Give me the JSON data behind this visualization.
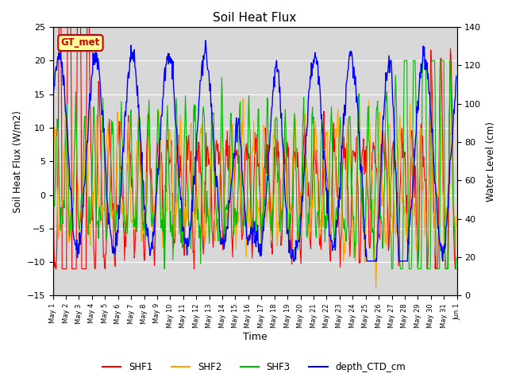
{
  "title": "Soil Heat Flux",
  "xlabel": "Time",
  "ylabel_left": "Soil Heat Flux (W/m2)",
  "ylabel_right": "Water Level (cm)",
  "ylim_left": [
    -15,
    25
  ],
  "ylim_right": [
    0,
    140
  ],
  "yticks_left": [
    -15,
    -10,
    -5,
    0,
    5,
    10,
    15,
    20,
    25
  ],
  "yticks_right": [
    0,
    20,
    40,
    60,
    80,
    100,
    120,
    140
  ],
  "colors": {
    "SHF1": "#ff0000",
    "SHF2": "#ffa500",
    "SHF3": "#00bb00",
    "depth_CTD_cm": "#0000ff"
  },
  "background_color": "#d8d8d8",
  "annotation_text": "GT_met",
  "annotation_color": "#cc0000",
  "annotation_bg": "#ffff99",
  "n_per_day": 24,
  "n_days": 31,
  "shf_period_days": 0.8,
  "depth_period_days": 2.8
}
